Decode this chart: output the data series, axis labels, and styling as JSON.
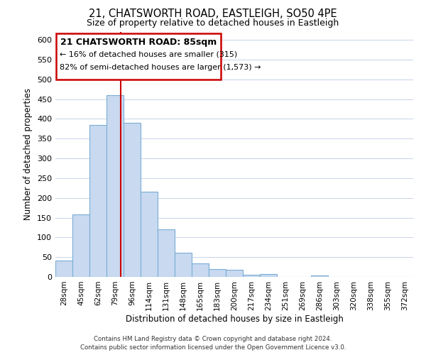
{
  "title": "21, CHATSWORTH ROAD, EASTLEIGH, SO50 4PE",
  "subtitle": "Size of property relative to detached houses in Eastleigh",
  "xlabel": "Distribution of detached houses by size in Eastleigh",
  "ylabel": "Number of detached properties",
  "bar_labels": [
    "28sqm",
    "45sqm",
    "62sqm",
    "79sqm",
    "96sqm",
    "114sqm",
    "131sqm",
    "148sqm",
    "165sqm",
    "183sqm",
    "200sqm",
    "217sqm",
    "234sqm",
    "251sqm",
    "269sqm",
    "286sqm",
    "303sqm",
    "320sqm",
    "338sqm",
    "355sqm",
    "372sqm"
  ],
  "bar_values": [
    42,
    158,
    385,
    460,
    390,
    215,
    120,
    62,
    35,
    20,
    18,
    5,
    8,
    0,
    0,
    4,
    0,
    0,
    0,
    0,
    0
  ],
  "bar_color": "#c8d9f0",
  "bar_edge_color": "#7aadd4",
  "property_line_x": 3.35,
  "ylim": [
    0,
    620
  ],
  "yticks": [
    0,
    50,
    100,
    150,
    200,
    250,
    300,
    350,
    400,
    450,
    500,
    550,
    600
  ],
  "annotation_title": "21 CHATSWORTH ROAD: 85sqm",
  "annotation_line1": "← 16% of detached houses are smaller (315)",
  "annotation_line2": "82% of semi-detached houses are larger (1,573) →",
  "annotation_box_color": "#ffffff",
  "annotation_border_color": "#cc0000",
  "footer_line1": "Contains HM Land Registry data © Crown copyright and database right 2024.",
  "footer_line2": "Contains public sector information licensed under the Open Government Licence v3.0.",
  "background_color": "#ffffff",
  "grid_color": "#c8d4e8"
}
